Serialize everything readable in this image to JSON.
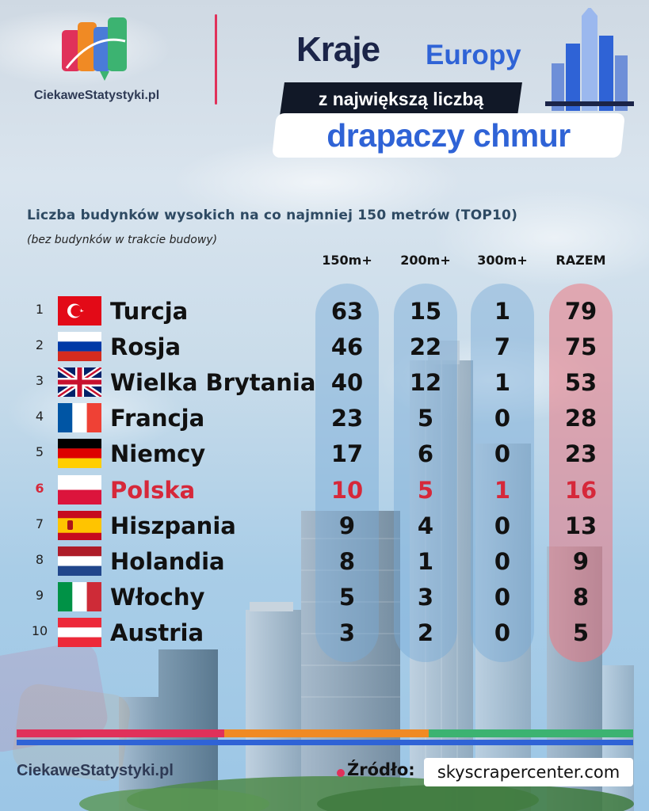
{
  "brand": {
    "logo_text": "CiekaweStatystyki.pl",
    "footer_logo_text": "CiekaweStatystyki.pl",
    "colors": {
      "pink": "#e0315a",
      "orange": "#f08a24",
      "green": "#3cb371",
      "blue": "#2f63d6",
      "navy": "#1b2448"
    }
  },
  "header": {
    "title_part1": "Kraje",
    "title_part2": "Europy",
    "title_part3": "z największą liczbą",
    "title_part4": "drapaczy chmur"
  },
  "subtitle": "Liczba budynków wysokich na co najmniej  150 metrów (TOP10)",
  "note": "(bez budynków w trakcie budowy)",
  "chart_data": {
    "type": "table",
    "columns": [
      "150m+",
      "200m+",
      "300m+",
      "RAZEM"
    ],
    "highlight_color": "#d6283a",
    "rows": [
      {
        "rank": "1",
        "country": "Turcja",
        "flag": "turkey-flag",
        "values": [
          "63",
          "15",
          "1",
          "79"
        ],
        "highlight": false
      },
      {
        "rank": "2",
        "country": "Rosja",
        "flag": "russia-flag",
        "values": [
          "46",
          "22",
          "7",
          "75"
        ],
        "highlight": false
      },
      {
        "rank": "3",
        "country": "Wielka Brytania",
        "flag": "uk-flag",
        "values": [
          "40",
          "12",
          "1",
          "53"
        ],
        "highlight": false
      },
      {
        "rank": "4",
        "country": "Francja",
        "flag": "france-flag",
        "values": [
          "23",
          "5",
          "0",
          "28"
        ],
        "highlight": false
      },
      {
        "rank": "5",
        "country": "Niemcy",
        "flag": "germany-flag",
        "values": [
          "17",
          "6",
          "0",
          "23"
        ],
        "highlight": false
      },
      {
        "rank": "6",
        "country": "Polska",
        "flag": "poland-flag",
        "values": [
          "10",
          "5",
          "1",
          "16"
        ],
        "highlight": true
      },
      {
        "rank": "7",
        "country": "Hiszpania",
        "flag": "spain-flag",
        "values": [
          "9",
          "4",
          "0",
          "13"
        ],
        "highlight": false
      },
      {
        "rank": "8",
        "country": "Holandia",
        "flag": "netherlands-flag",
        "values": [
          "8",
          "1",
          "0",
          "9"
        ],
        "highlight": false
      },
      {
        "rank": "9",
        "country": "Włochy",
        "flag": "italy-flag",
        "values": [
          "5",
          "3",
          "0",
          "8"
        ],
        "highlight": false
      },
      {
        "rank": "10",
        "country": "Austria",
        "flag": "austria-flag",
        "values": [
          "3",
          "2",
          "0",
          "5"
        ],
        "highlight": false
      }
    ]
  },
  "footer": {
    "source_label": "Źródło:",
    "source_value": "skyscrapercenter.com"
  }
}
